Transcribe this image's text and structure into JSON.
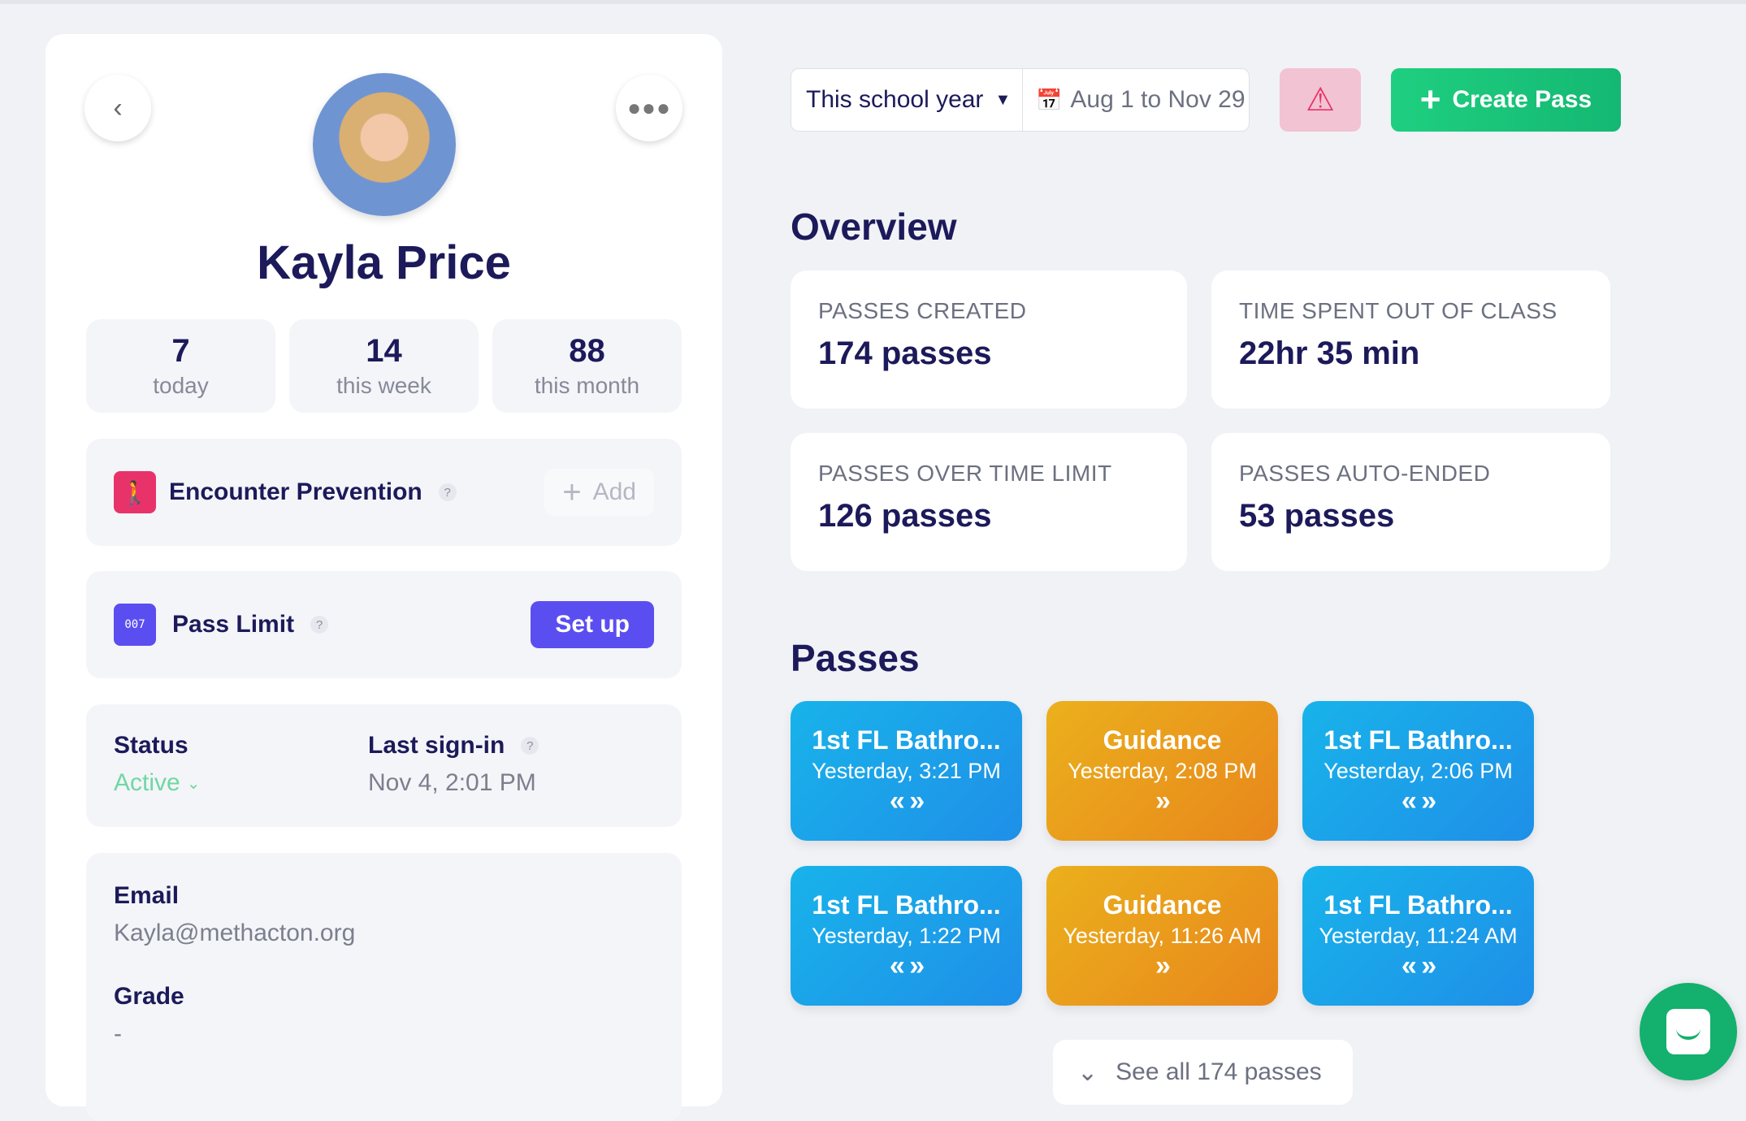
{
  "profile": {
    "name": "Kayla Price",
    "stats": [
      {
        "value": "7",
        "label": "today"
      },
      {
        "value": "14",
        "label": "this week"
      },
      {
        "value": "88",
        "label": "this month"
      }
    ]
  },
  "encounter": {
    "label": "Encounter Prevention",
    "help": "?",
    "add_label": "Add"
  },
  "pass_limit": {
    "label": "Pass Limit",
    "help": "?",
    "setup_label": "Set up"
  },
  "status": {
    "label": "Status",
    "value": "Active",
    "last_signin_label": "Last sign-in",
    "help": "?",
    "last_signin_value": "Nov 4, 2:01 PM"
  },
  "contact": {
    "email_label": "Email",
    "email_value": "Kayla@methacton.org",
    "grade_label": "Grade",
    "grade_value": "-"
  },
  "toolbar": {
    "range_select": "This school year",
    "date_range": "Aug 1 to Nov 29",
    "create_label": "Create Pass"
  },
  "overview": {
    "title": "Overview",
    "cards": [
      {
        "title": "PASSES CREATED",
        "value": "174 passes"
      },
      {
        "title": "TIME SPENT OUT OF CLASS",
        "value": "22hr 35 min"
      },
      {
        "title": "PASSES OVER TIME LIMIT",
        "value": "126 passes"
      },
      {
        "title": "PASSES AUTO-ENDED",
        "value": "53 passes"
      }
    ]
  },
  "passes": {
    "title": "Passes",
    "items": [
      {
        "dest": "1st FL Bathro...",
        "time": "Yesterday, 3:21 PM",
        "type": "round-trip",
        "color": "blue"
      },
      {
        "dest": "Guidance",
        "time": "Yesterday, 2:08 PM",
        "type": "one-way",
        "color": "orange"
      },
      {
        "dest": "1st FL Bathro...",
        "time": "Yesterday, 2:06 PM",
        "type": "round-trip",
        "color": "blue"
      },
      {
        "dest": "1st FL Bathro...",
        "time": "Yesterday, 1:22 PM",
        "type": "round-trip",
        "color": "blue"
      },
      {
        "dest": "Guidance",
        "time": "Yesterday, 11:26 AM",
        "type": "one-way",
        "color": "orange"
      },
      {
        "dest": "1st FL Bathro...",
        "time": "Yesterday, 11:24 AM",
        "type": "round-trip",
        "color": "blue"
      }
    ],
    "see_all": "See all 174 passes"
  },
  "colors": {
    "navy": "#1c1a5a",
    "green": "#14c47a",
    "purple": "#5b4ef0",
    "pink": "#e8336a"
  }
}
